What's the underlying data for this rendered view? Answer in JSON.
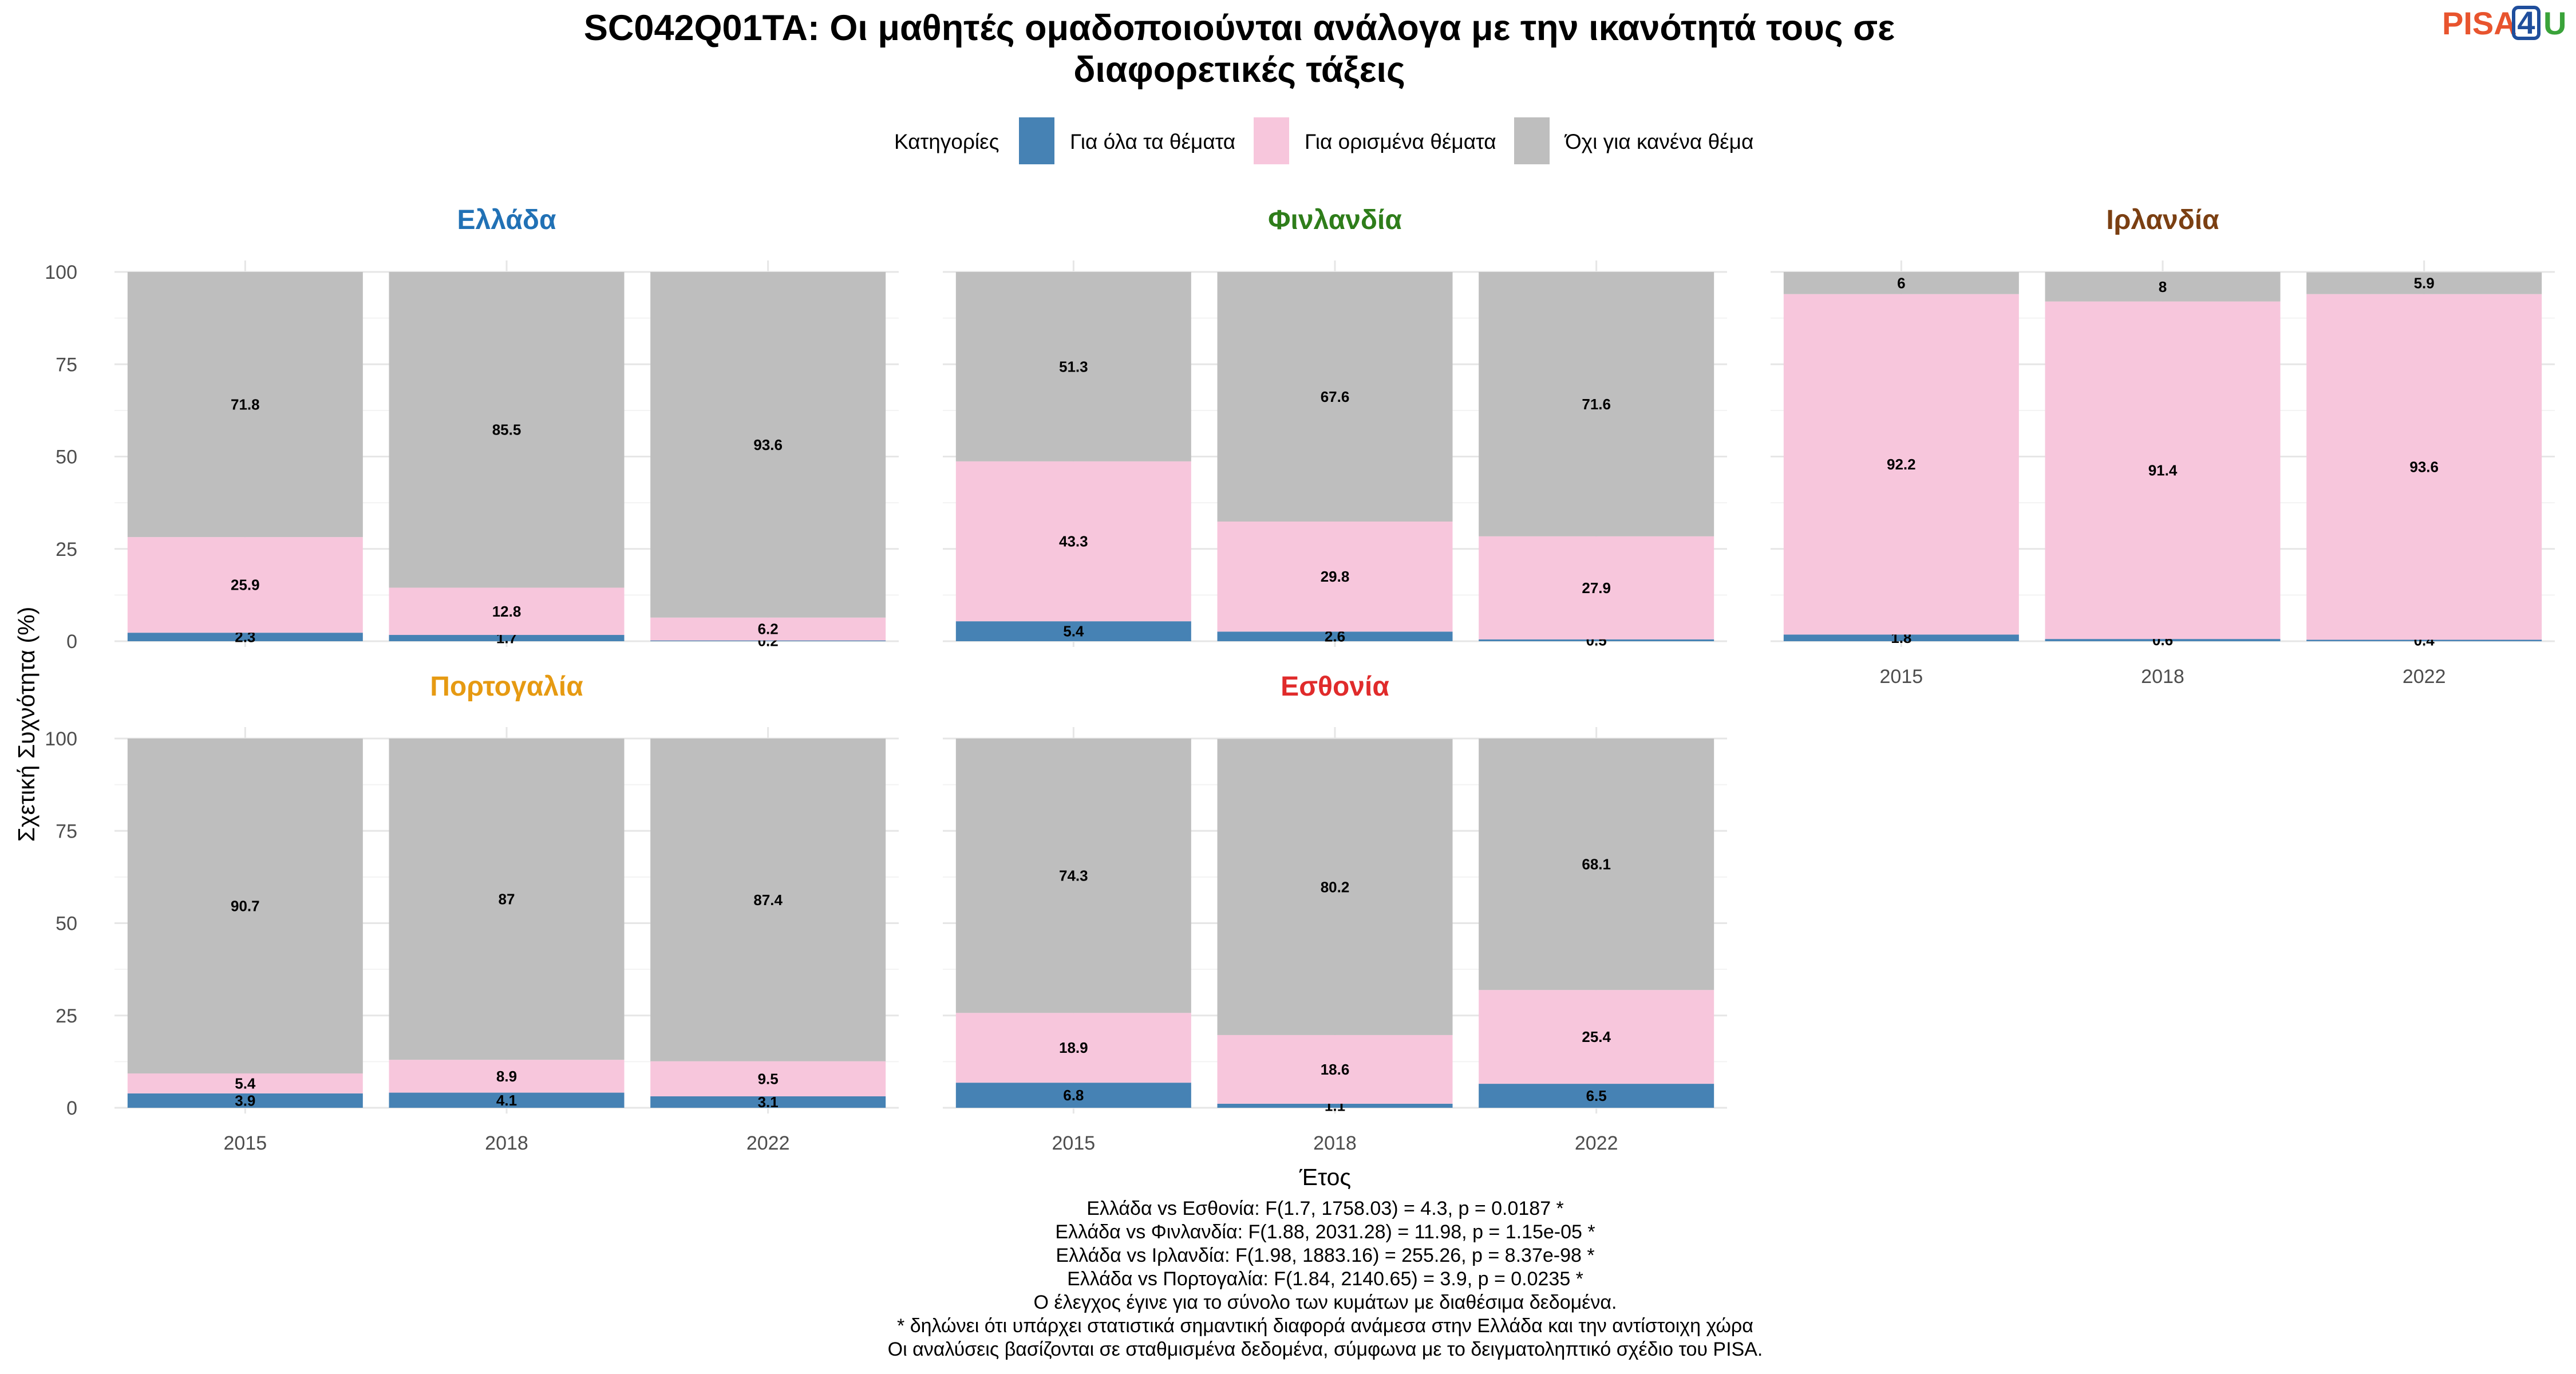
{
  "chart_data": {
    "type": "bar",
    "stacked": true,
    "title_lines": [
      "SC042Q01TA: Οι μαθητές ομαδοποιούνται ανάλογα με την ικανότητά τους σε",
      "διαφορετικές τάξεις"
    ],
    "legend": {
      "title": "Κατηγορίες",
      "placement": "top",
      "items": [
        {
          "label": "Για όλα τα θέματα",
          "color": "#4682b4"
        },
        {
          "label": "Για ορισμένα θέματα",
          "color": "#f7c6dc"
        },
        {
          "label": "Όχι για κανένα θέμα",
          "color": "#bebebe"
        }
      ]
    },
    "xlabel": "Έτος",
    "ylabel": "Σχετική Συχνότητα (%)",
    "ylim": [
      0,
      100
    ],
    "yticks": [
      "0",
      "25",
      "50",
      "75",
      "100"
    ],
    "categories": [
      "2015",
      "2018",
      "2022"
    ],
    "grid": true,
    "facets": [
      {
        "name": "Ελλάδα",
        "color": "#2171b5",
        "series": [
          {
            "name": "Για όλα τα θέματα",
            "values": [
              2.3,
              1.7,
              0.2
            ],
            "labels": [
              "2.3",
              "1.7",
              "0.2"
            ]
          },
          {
            "name": "Για ορισμένα θέματα",
            "values": [
              25.9,
              12.8,
              6.2
            ],
            "labels": [
              "25.9",
              "12.8",
              "6.2"
            ]
          },
          {
            "name": "Όχι για κανένα θέμα",
            "values": [
              71.8,
              85.5,
              93.6
            ],
            "labels": [
              "71.8",
              "85.5",
              "93.6"
            ]
          }
        ]
      },
      {
        "name": "Φινλανδία",
        "color": "#2e7d1a",
        "series": [
          {
            "name": "Για όλα τα θέματα",
            "values": [
              5.4,
              2.6,
              0.5
            ],
            "labels": [
              "5.4",
              "2.6",
              "0.5"
            ]
          },
          {
            "name": "Για ορισμένα θέματα",
            "values": [
              43.3,
              29.8,
              27.9
            ],
            "labels": [
              "43.3",
              "29.8",
              "27.9"
            ]
          },
          {
            "name": "Όχι για κανένα θέμα",
            "values": [
              51.3,
              67.6,
              71.6
            ],
            "labels": [
              "51.3",
              "67.6",
              "71.6"
            ]
          }
        ]
      },
      {
        "name": "Ιρλανδία",
        "color": "#7b3f12",
        "series": [
          {
            "name": "Για όλα τα θέματα",
            "values": [
              1.8,
              0.6,
              0.4
            ],
            "labels": [
              "1.8",
              "0.6",
              "0.4"
            ]
          },
          {
            "name": "Για ορισμένα θέματα",
            "values": [
              92.2,
              91.4,
              93.6
            ],
            "labels": [
              "92.2",
              "91.4",
              "93.6"
            ]
          },
          {
            "name": "Όχι για κανένα θέμα",
            "values": [
              6,
              8,
              5.9
            ],
            "labels": [
              "6",
              "8",
              "5.9"
            ]
          }
        ]
      },
      {
        "name": "Πορτογαλία",
        "color": "#e69a12",
        "series": [
          {
            "name": "Για όλα τα θέματα",
            "values": [
              3.9,
              4.1,
              3.1
            ],
            "labels": [
              "3.9",
              "4.1",
              "3.1"
            ]
          },
          {
            "name": "Για ορισμένα θέματα",
            "values": [
              5.4,
              8.9,
              9.5
            ],
            "labels": [
              "5.4",
              "8.9",
              "9.5"
            ]
          },
          {
            "name": "Όχι για κανένα θέμα",
            "values": [
              90.7,
              87,
              87.4
            ],
            "labels": [
              "90.7",
              "87",
              "87.4"
            ]
          }
        ]
      },
      {
        "name": "Εσθονία",
        "color": "#e02b2b",
        "series": [
          {
            "name": "Για όλα τα θέματα",
            "values": [
              6.8,
              1.1,
              6.5
            ],
            "labels": [
              "6.8",
              "1.1",
              "6.5"
            ]
          },
          {
            "name": "Για ορισμένα θέματα",
            "values": [
              18.9,
              18.6,
              25.4
            ],
            "labels": [
              "18.9",
              "18.6",
              "25.4"
            ]
          },
          {
            "name": "Όχι για κανένα θέμα",
            "values": [
              74.3,
              80.2,
              68.1
            ],
            "labels": [
              "74.3",
              "80.2",
              "68.1"
            ]
          }
        ]
      }
    ],
    "caption_lines": [
      "Ελλάδα vs Εσθονία: F(1.7, 1758.03) = 4.3, p = 0.0187 *",
      "Ελλάδα vs Φινλανδία: F(1.88, 2031.28) = 11.98, p = 1.15e-05 *",
      "Ελλάδα vs Ιρλανδία: F(1.98, 1883.16) = 255.26, p = 8.37e-98 *",
      "Ελλάδα vs Πορτογαλία: F(1.84, 2140.65) = 3.9, p = 0.0235 *",
      "Ο έλεγχος έγινε για το σύνολο των κυμάτων με διαθέσιμα δεδομένα.",
      "* δηλώνει ότι υπάρχει στατιστικά σημαντική διαφορά ανάμεσα στην Ελλάδα και την αντίστοιχη χώρα",
      "Οι αναλύσεις βασίζονται σε σταθμισμένα δεδομένα, σύμφωνα με το δειγματοληπτικό σχέδιο του PISA."
    ]
  },
  "logo": {
    "part1": "PISA",
    "part1_color": "#e8542e",
    "part2": "4",
    "part2_color": "#1f4e9c",
    "part3": "U",
    "part3_color": "#3aa33a"
  }
}
